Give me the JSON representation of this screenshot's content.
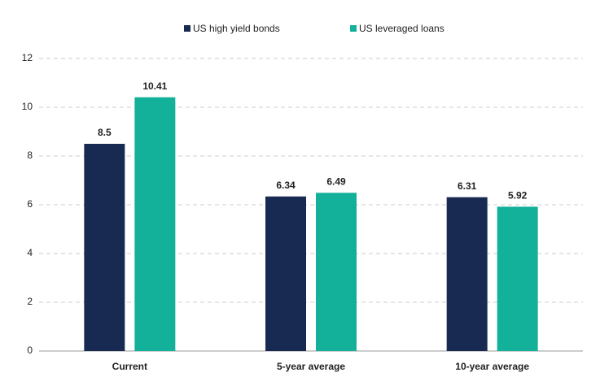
{
  "chart_data": {
    "type": "bar",
    "categories": [
      "Current",
      "5-year average",
      "10-year average"
    ],
    "series": [
      {
        "name": "US high yield bonds",
        "color": "#192a52",
        "values": [
          8.5,
          6.34,
          6.31
        ]
      },
      {
        "name": "US leveraged loans",
        "color": "#13b09a",
        "values": [
          10.41,
          6.49,
          5.92
        ]
      }
    ],
    "ylim": [
      0,
      12
    ],
    "yticks": [
      0,
      2,
      4,
      6,
      8,
      10,
      12
    ],
    "grid": true,
    "legend": "top"
  }
}
